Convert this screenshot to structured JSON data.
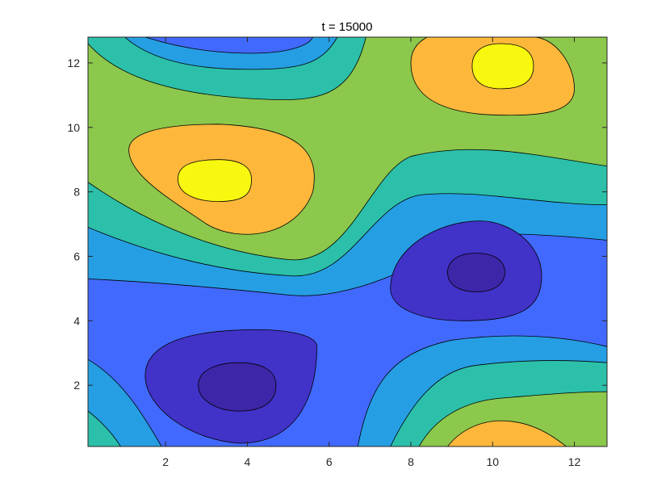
{
  "chart_data": {
    "type": "contour",
    "title": "t = 15000",
    "xlabel": "",
    "ylabel": "",
    "xlim": [
      0.1,
      12.8
    ],
    "ylim": [
      0.1,
      12.8
    ],
    "x_ticks": [
      2,
      4,
      6,
      8,
      10,
      12
    ],
    "y_ticks": [
      2,
      4,
      6,
      8,
      10,
      12
    ],
    "grid": false,
    "filled": true,
    "line_color": "#000000",
    "colormap": [
      "#3e26a8",
      "#4132c8",
      "#4269fe",
      "#269ee4",
      "#2cc0aa",
      "#8cc84b",
      "#fdb83c",
      "#f8f70f"
    ],
    "levels_count": 8,
    "features": [
      {
        "kind": "minimum",
        "x": 3.8,
        "y": 2.0
      },
      {
        "kind": "minimum",
        "x": 9.6,
        "y": 5.5
      },
      {
        "kind": "maximum",
        "x": 3.2,
        "y": 8.4
      },
      {
        "kind": "maximum",
        "x": 10.2,
        "y": 11.9
      },
      {
        "kind": "maximum",
        "x": 9.5,
        "y": 0.1
      },
      {
        "kind": "minimum",
        "x": 4.0,
        "y": 12.8
      }
    ]
  }
}
